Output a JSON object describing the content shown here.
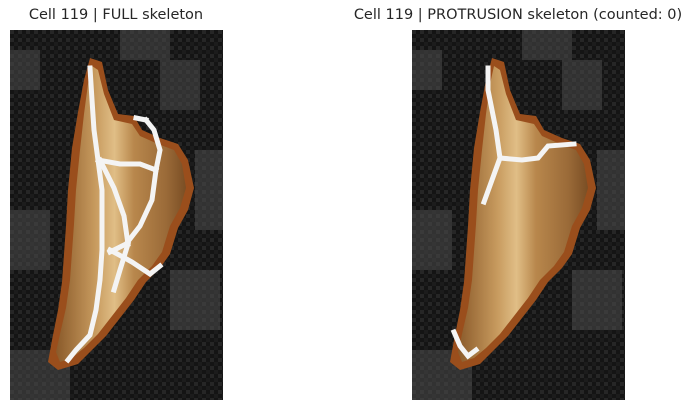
{
  "panels": [
    {
      "title": "Cell 119 | FULL skeleton"
    },
    {
      "title": "Cell 119 | PROTRUSION skeleton (counted: 0)"
    }
  ],
  "colors": {
    "background": "#101010",
    "cell_fill": "#c4965e",
    "cell_outline": "#9a4e1c",
    "skeleton": "#f4f4f4"
  }
}
